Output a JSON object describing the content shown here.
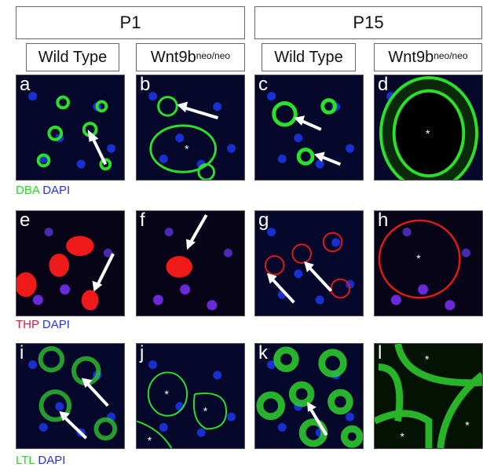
{
  "headers": [
    {
      "label": "P1"
    },
    {
      "label": "P15"
    }
  ],
  "columns": [
    {
      "label": "Wild Type",
      "sup": ""
    },
    {
      "label": "Wnt9b",
      "sup": "neo/neo"
    },
    {
      "label": "Wild Type",
      "sup": ""
    },
    {
      "label": "Wnt9b",
      "sup": "neo/neo"
    }
  ],
  "rows": [
    {
      "stain": "DBA",
      "stain_color": "#22dd22",
      "counter": "DAPI",
      "counter_color": "#2233ee",
      "panels": [
        "a",
        "b",
        "c",
        "d"
      ]
    },
    {
      "stain": "THP",
      "stain_color": "#ee1144",
      "counter": "DAPI",
      "counter_color": "#2233ee",
      "panels": [
        "e",
        "f",
        "g",
        "h"
      ]
    },
    {
      "stain": "LTL",
      "stain_color": "#22dd22",
      "counter": "DAPI",
      "counter_color": "#2233ee",
      "panels": [
        "i",
        "j",
        "k",
        "l"
      ]
    }
  ],
  "lumen_marker": "*"
}
